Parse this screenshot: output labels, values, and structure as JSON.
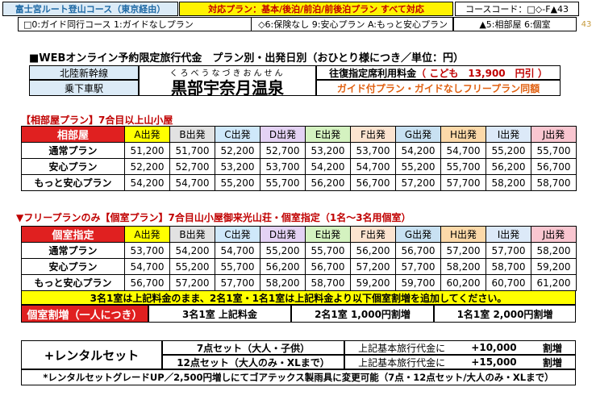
{
  "header": {
    "route": "富士宮ルート登山コース（東京経由）",
    "plans": "対応プラン：基本/後泊/前泊/前後泊プラン すべて対応",
    "course_code": "コースコード：□◇-F▲43",
    "legend_guide": "□0:ガイド同行コース 1:ガイドなしプラン",
    "legend_insurance": "◇6:保険なし 9:安心プラン A:もっと安心プラン",
    "legend_room": "▲5:相部屋 6:個室",
    "page_number": "43"
  },
  "title": "■WEBオンライン予約限定旅行代金　プラン別・出発日別（おひとり様につき／単位：円）",
  "departure": {
    "line": "北陸新幹線",
    "station": "乗下車駅",
    "furigana": "くろべうなづきおんせん",
    "station_name": "黒部宇奈月温泉",
    "fare_label": "往復指定席利用料金",
    "fare_child": "（ こども　13,900　円引 ）",
    "note": "ガイド付プラン・ガイドなしフリープラン同額"
  },
  "shared": {
    "title": "【相部屋プラン】7合目以上山小屋",
    "header_label": "相部屋",
    "columns": [
      "A出発",
      "B出発",
      "C出発",
      "D出発",
      "E出発",
      "F出発",
      "G出発",
      "H出発",
      "I出発",
      "J出発"
    ],
    "rows": [
      {
        "label": "通常プラン",
        "values": [
          "51,200",
          "51,700",
          "52,200",
          "52,700",
          "53,200",
          "53,700",
          "54,200",
          "54,700",
          "55,200",
          "55,700"
        ]
      },
      {
        "label": "安心プラン",
        "values": [
          "52,200",
          "52,700",
          "53,200",
          "53,700",
          "54,200",
          "54,700",
          "55,200",
          "55,700",
          "56,200",
          "56,700"
        ]
      },
      {
        "label": "もっと安心プラン",
        "values": [
          "54,200",
          "54,700",
          "55,200",
          "55,700",
          "56,200",
          "56,700",
          "57,200",
          "57,700",
          "58,200",
          "58,700"
        ]
      }
    ]
  },
  "private": {
    "title": "▼フリープランのみ【個室プラン】7合目山小屋御来光山荘・個室指定（1名～3名用個室）",
    "header_label": "個室指定",
    "columns": [
      "A出発",
      "B出発",
      "C出発",
      "D出発",
      "E出発",
      "F出発",
      "G出発",
      "H出発",
      "I出発",
      "J出発"
    ],
    "rows": [
      {
        "label": "通常プラン",
        "values": [
          "53,700",
          "54,200",
          "54,700",
          "55,200",
          "55,700",
          "56,200",
          "56,700",
          "57,200",
          "57,700",
          "58,200"
        ]
      },
      {
        "label": "安心プラン",
        "values": [
          "54,700",
          "55,200",
          "55,700",
          "56,200",
          "56,700",
          "57,200",
          "57,700",
          "58,200",
          "58,700",
          "59,200"
        ]
      },
      {
        "label": "もっと安心プラン",
        "values": [
          "56,700",
          "57,200",
          "57,700",
          "58,200",
          "58,700",
          "59,200",
          "59,700",
          "60,200",
          "60,700",
          "61,200"
        ]
      }
    ],
    "note": "3名1室は上記料金のまま、2名1室・1名1室は上記料金より以下個室割増を追加してください。",
    "surcharge_label": "個室割増（一人につき）",
    "surcharge_3": "3名1室 上記料金",
    "surcharge_2": "2名1室 1,000円割増",
    "surcharge_1": "1名1室 2,000円割増"
  },
  "rental": {
    "label": "+レンタルセット",
    "set7": "7点セット（大人・子供）",
    "set12": "12点セット（大人のみ・XLまで）",
    "price7_text": "上記基本旅行代金に",
    "price7_amount": "+10,000",
    "price7_unit": "割増",
    "price12_text": "上記基本旅行代金に",
    "price12_amount": "+15,000",
    "price12_unit": "割増",
    "note": "*レンタルセットグレードUP／2,500円増しにてゴアテックス製雨具に変更可能（7点・12点セット/大人のみ・XLまで）"
  },
  "colors": {
    "col_bg": [
      "#ffff00",
      "#e2e2e2",
      "#cfe8fa",
      "#e4d2f4",
      "#d4f2c0",
      "#fce4d0",
      "#c8e1f2",
      "#fcd9a9",
      "#dce9f8",
      "#f9c6d0"
    ],
    "header_red": "#e02020",
    "accent_red": "#c00000",
    "note_yellow": "#ffff00"
  }
}
